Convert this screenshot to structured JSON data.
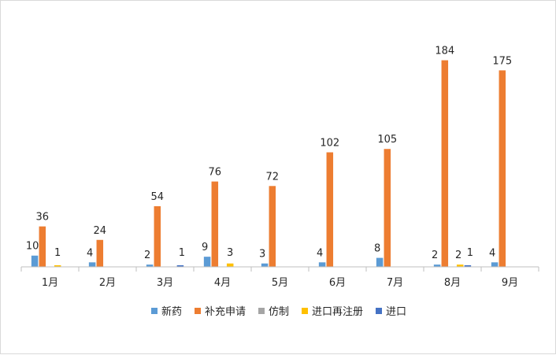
{
  "chart_data": {
    "type": "bar",
    "title": "",
    "xlabel": "",
    "ylabel": "",
    "categories": [
      "1月",
      "2月",
      "3月",
      "4月",
      "5月",
      "6月",
      "7月",
      "8月",
      "9月"
    ],
    "series": [
      {
        "name": "新药",
        "color": "#5b9bd5",
        "values": [
          10,
          4,
          2,
          9,
          3,
          4,
          8,
          2,
          4
        ]
      },
      {
        "name": "补充申请",
        "color": "#ed7d31",
        "values": [
          36,
          24,
          54,
          76,
          72,
          102,
          105,
          184,
          175
        ]
      },
      {
        "name": "仿制",
        "color": "#a5a5a5",
        "values": [
          0,
          0,
          0,
          0,
          0,
          0,
          0,
          0,
          0
        ]
      },
      {
        "name": "进口再注册",
        "color": "#ffc000",
        "values": [
          1,
          0,
          0,
          3,
          0,
          0,
          0,
          2,
          0
        ]
      },
      {
        "name": "进口",
        "color": "#4472c4",
        "values": [
          0,
          0,
          1,
          0,
          0,
          0,
          0,
          1,
          0
        ]
      }
    ],
    "data_labels": [
      [
        "10",
        "4",
        "2",
        "9",
        "3",
        "4",
        "8",
        "2",
        "4"
      ],
      [
        "36",
        "24",
        "54",
        "76",
        "72",
        "102",
        "105",
        "184",
        "175"
      ],
      [
        "",
        "",
        "",
        "",
        "",
        "",
        "",
        "",
        ""
      ],
      [
        "1",
        "",
        "",
        "3",
        "",
        "",
        "",
        "2",
        ""
      ],
      [
        "",
        "",
        "1",
        "",
        "",
        "",
        "",
        "1",
        ""
      ]
    ],
    "ylim": [
      0,
      190
    ],
    "grid": false,
    "legend_position": "bottom"
  }
}
